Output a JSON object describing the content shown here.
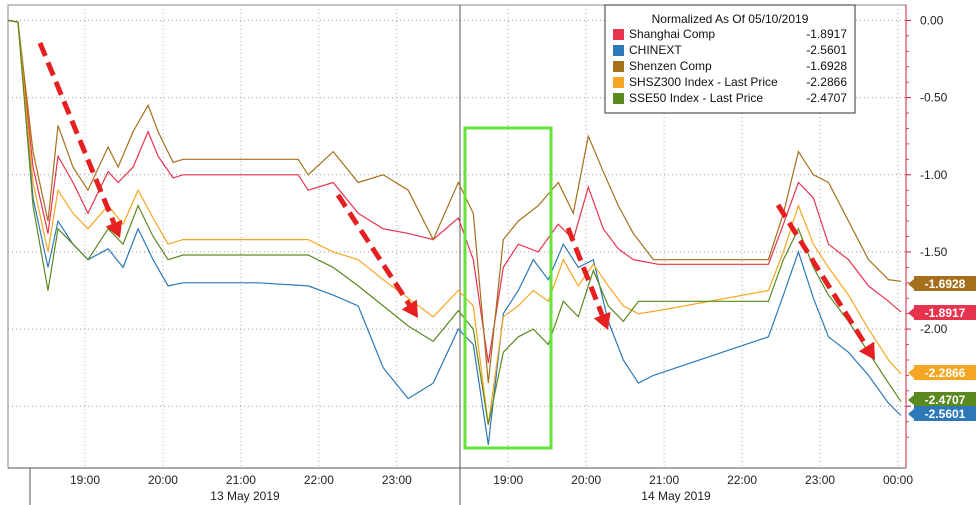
{
  "chart_data": {
    "type": "line",
    "legend": {
      "title": "Normalized As Of 05/10/2019",
      "placement": "top-right",
      "entries": [
        {
          "name": "Shanghai Comp",
          "value": "-1.8917",
          "color": "#e8334f"
        },
        {
          "name": "CHINEXT",
          "value": "-2.5601",
          "color": "#2e78b8"
        },
        {
          "name": "Shenzen Comp",
          "value": "-1.6928",
          "color": "#a66f1c"
        },
        {
          "name": "SHSZ300 Index - Last Price",
          "value": "-2.2866",
          "color": "#f5a623"
        },
        {
          "name": "SSE50 Index - Last Price",
          "value": "-2.4707",
          "color": "#5a8a1e"
        }
      ]
    },
    "ylim": [
      -2.9,
      0.1
    ],
    "yticks": [
      "0.00",
      "-0.50",
      "-1.00",
      "-1.50",
      "-2.00",
      "-2.50"
    ],
    "y_axis_position": "right",
    "grid": "dotted",
    "xticks": [
      "19:00",
      "20:00",
      "21:00",
      "22:00",
      "23:00",
      "19:00",
      "20:00",
      "21:00",
      "22:00",
      "23:00",
      "00:00"
    ],
    "date_labels": [
      "13 May 2019",
      "14 May 2019"
    ],
    "end_labels": [
      {
        "text": "-1.6928",
        "value": -1.6928,
        "color": "#a66f1c"
      },
      {
        "text": "-1.8917",
        "value": -1.8917,
        "color": "#e8334f"
      },
      {
        "text": "-2.2866",
        "value": -2.2866,
        "color": "#f5a623"
      },
      {
        "text": "-2.4707",
        "value": -2.4707,
        "color": "#5a8a1e"
      },
      {
        "text": "-2.5601",
        "value": -2.5601,
        "color": "#2e78b8"
      }
    ],
    "series": [
      {
        "name": "Shanghai Comp",
        "color": "#e8334f",
        "points": [
          [
            0,
            0
          ],
          [
            0.2,
            -0.01
          ],
          [
            0.5,
            -0.95
          ],
          [
            0.8,
            -1.38
          ],
          [
            1.0,
            -0.88
          ],
          [
            1.3,
            -1.05
          ],
          [
            1.6,
            -1.25
          ],
          [
            2.0,
            -0.98
          ],
          [
            2.2,
            -1.05
          ],
          [
            2.5,
            -0.95
          ],
          [
            2.8,
            -0.72
          ],
          [
            3.0,
            -0.88
          ],
          [
            3.3,
            -1.02
          ],
          [
            3.5,
            -1.0
          ],
          [
            4.5,
            -1.0
          ],
          [
            5.8,
            -1.0
          ],
          [
            6.0,
            -1.1
          ],
          [
            6.5,
            -1.05
          ],
          [
            7.0,
            -1.25
          ],
          [
            7.5,
            -1.35
          ],
          [
            8.0,
            -1.38
          ],
          [
            8.5,
            -1.42
          ],
          [
            9.0,
            -1.28
          ],
          [
            9.3,
            -1.55
          ],
          [
            9.6,
            -2.22
          ],
          [
            9.9,
            -1.6
          ],
          [
            10.2,
            -1.45
          ],
          [
            10.6,
            -1.5
          ],
          [
            11.0,
            -1.32
          ],
          [
            11.3,
            -1.42
          ],
          [
            11.6,
            -1.08
          ],
          [
            11.9,
            -1.35
          ],
          [
            12.2,
            -1.48
          ],
          [
            12.5,
            -1.55
          ],
          [
            13.0,
            -1.58
          ],
          [
            15.2,
            -1.58
          ],
          [
            15.5,
            -1.32
          ],
          [
            15.8,
            -1.05
          ],
          [
            16.1,
            -1.15
          ],
          [
            16.4,
            -1.45
          ],
          [
            16.8,
            -1.55
          ],
          [
            17.2,
            -1.72
          ],
          [
            17.6,
            -1.82
          ],
          [
            17.85,
            -1.89
          ]
        ]
      },
      {
        "name": "CHINEXT",
        "color": "#2e78b8",
        "points": [
          [
            0,
            0
          ],
          [
            0.2,
            -0.01
          ],
          [
            0.5,
            -1.15
          ],
          [
            0.8,
            -1.6
          ],
          [
            1.0,
            -1.3
          ],
          [
            1.3,
            -1.45
          ],
          [
            1.6,
            -1.55
          ],
          [
            2.0,
            -1.48
          ],
          [
            2.3,
            -1.6
          ],
          [
            2.6,
            -1.35
          ],
          [
            2.9,
            -1.55
          ],
          [
            3.2,
            -1.72
          ],
          [
            3.5,
            -1.7
          ],
          [
            5.0,
            -1.7
          ],
          [
            6.0,
            -1.72
          ],
          [
            6.5,
            -1.78
          ],
          [
            7.0,
            -1.85
          ],
          [
            7.5,
            -2.25
          ],
          [
            8.0,
            -2.45
          ],
          [
            8.5,
            -2.35
          ],
          [
            9.0,
            -2.0
          ],
          [
            9.3,
            -2.1
          ],
          [
            9.6,
            -2.75
          ],
          [
            9.9,
            -1.9
          ],
          [
            10.2,
            -1.75
          ],
          [
            10.5,
            -1.55
          ],
          [
            10.8,
            -1.68
          ],
          [
            11.1,
            -1.45
          ],
          [
            11.4,
            -1.6
          ],
          [
            11.7,
            -1.55
          ],
          [
            12.0,
            -1.95
          ],
          [
            12.3,
            -2.2
          ],
          [
            12.6,
            -2.35
          ],
          [
            12.9,
            -2.3
          ],
          [
            15.2,
            -2.05
          ],
          [
            15.5,
            -1.78
          ],
          [
            15.8,
            -1.5
          ],
          [
            16.1,
            -1.8
          ],
          [
            16.4,
            -2.05
          ],
          [
            16.8,
            -2.15
          ],
          [
            17.2,
            -2.3
          ],
          [
            17.6,
            -2.48
          ],
          [
            17.85,
            -2.56
          ]
        ]
      },
      {
        "name": "Shenzen Comp",
        "color": "#a66f1c",
        "points": [
          [
            0,
            0
          ],
          [
            0.2,
            -0.01
          ],
          [
            0.5,
            -0.85
          ],
          [
            0.8,
            -1.3
          ],
          [
            1.0,
            -0.68
          ],
          [
            1.3,
            -0.95
          ],
          [
            1.6,
            -1.1
          ],
          [
            2.0,
            -0.82
          ],
          [
            2.2,
            -0.95
          ],
          [
            2.5,
            -0.72
          ],
          [
            2.8,
            -0.55
          ],
          [
            3.0,
            -0.72
          ],
          [
            3.3,
            -0.92
          ],
          [
            3.5,
            -0.9
          ],
          [
            5.0,
            -0.9
          ],
          [
            5.8,
            -0.9
          ],
          [
            6.0,
            -1.0
          ],
          [
            6.5,
            -0.85
          ],
          [
            7.0,
            -1.05
          ],
          [
            7.5,
            -1.0
          ],
          [
            8.0,
            -1.1
          ],
          [
            8.5,
            -1.42
          ],
          [
            9.0,
            -1.05
          ],
          [
            9.3,
            -1.25
          ],
          [
            9.6,
            -2.35
          ],
          [
            9.9,
            -1.42
          ],
          [
            10.2,
            -1.3
          ],
          [
            10.6,
            -1.2
          ],
          [
            11.0,
            -1.05
          ],
          [
            11.3,
            -1.25
          ],
          [
            11.6,
            -0.75
          ],
          [
            11.9,
            -0.98
          ],
          [
            12.2,
            -1.2
          ],
          [
            12.5,
            -1.38
          ],
          [
            12.9,
            -1.55
          ],
          [
            15.2,
            -1.55
          ],
          [
            15.5,
            -1.25
          ],
          [
            15.8,
            -0.85
          ],
          [
            16.1,
            -1.0
          ],
          [
            16.4,
            -1.05
          ],
          [
            16.8,
            -1.3
          ],
          [
            17.2,
            -1.55
          ],
          [
            17.6,
            -1.68
          ],
          [
            17.85,
            -1.69
          ]
        ]
      },
      {
        "name": "SHSZ300 Index - Last Price",
        "color": "#f5a623",
        "points": [
          [
            0,
            0
          ],
          [
            0.2,
            -0.01
          ],
          [
            0.5,
            -1.05
          ],
          [
            0.8,
            -1.5
          ],
          [
            1.0,
            -1.1
          ],
          [
            1.3,
            -1.25
          ],
          [
            1.6,
            -1.35
          ],
          [
            2.0,
            -1.2
          ],
          [
            2.3,
            -1.32
          ],
          [
            2.6,
            -1.1
          ],
          [
            2.9,
            -1.28
          ],
          [
            3.2,
            -1.45
          ],
          [
            3.5,
            -1.42
          ],
          [
            5.0,
            -1.42
          ],
          [
            6.0,
            -1.42
          ],
          [
            6.5,
            -1.5
          ],
          [
            7.0,
            -1.55
          ],
          [
            7.5,
            -1.68
          ],
          [
            8.0,
            -1.8
          ],
          [
            8.5,
            -1.92
          ],
          [
            9.0,
            -1.75
          ],
          [
            9.3,
            -1.85
          ],
          [
            9.6,
            -2.62
          ],
          [
            9.9,
            -1.92
          ],
          [
            10.2,
            -1.85
          ],
          [
            10.5,
            -1.75
          ],
          [
            10.8,
            -1.82
          ],
          [
            11.1,
            -1.55
          ],
          [
            11.4,
            -1.72
          ],
          [
            11.7,
            -1.58
          ],
          [
            12.0,
            -1.72
          ],
          [
            12.3,
            -1.85
          ],
          [
            12.6,
            -1.9
          ],
          [
            13.0,
            -1.88
          ],
          [
            15.2,
            -1.75
          ],
          [
            15.5,
            -1.5
          ],
          [
            15.8,
            -1.2
          ],
          [
            16.1,
            -1.45
          ],
          [
            16.4,
            -1.6
          ],
          [
            16.8,
            -1.78
          ],
          [
            17.2,
            -2.0
          ],
          [
            17.6,
            -2.2
          ],
          [
            17.85,
            -2.29
          ]
        ]
      },
      {
        "name": "SSE50 Index - Last Price",
        "color": "#5a8a1e",
        "points": [
          [
            0,
            0
          ],
          [
            0.2,
            -0.01
          ],
          [
            0.5,
            -1.2
          ],
          [
            0.8,
            -1.75
          ],
          [
            1.0,
            -1.35
          ],
          [
            1.3,
            -1.45
          ],
          [
            1.6,
            -1.55
          ],
          [
            2.0,
            -1.35
          ],
          [
            2.3,
            -1.45
          ],
          [
            2.6,
            -1.2
          ],
          [
            2.9,
            -1.4
          ],
          [
            3.2,
            -1.55
          ],
          [
            3.5,
            -1.52
          ],
          [
            5.0,
            -1.52
          ],
          [
            6.0,
            -1.52
          ],
          [
            6.5,
            -1.6
          ],
          [
            7.0,
            -1.72
          ],
          [
            7.5,
            -1.85
          ],
          [
            8.0,
            -1.98
          ],
          [
            8.5,
            -2.08
          ],
          [
            9.0,
            -1.88
          ],
          [
            9.3,
            -2.0
          ],
          [
            9.6,
            -2.62
          ],
          [
            9.9,
            -2.15
          ],
          [
            10.2,
            -2.05
          ],
          [
            10.5,
            -2.0
          ],
          [
            10.8,
            -2.1
          ],
          [
            11.1,
            -1.82
          ],
          [
            11.4,
            -1.92
          ],
          [
            11.7,
            -1.62
          ],
          [
            12.0,
            -1.85
          ],
          [
            12.3,
            -1.95
          ],
          [
            12.6,
            -1.82
          ],
          [
            13.0,
            -1.82
          ],
          [
            15.2,
            -1.82
          ],
          [
            15.5,
            -1.55
          ],
          [
            15.8,
            -1.35
          ],
          [
            16.1,
            -1.6
          ],
          [
            16.4,
            -1.78
          ],
          [
            16.8,
            -1.95
          ],
          [
            17.2,
            -2.15
          ],
          [
            17.6,
            -2.35
          ],
          [
            17.85,
            -2.47
          ]
        ]
      }
    ]
  }
}
